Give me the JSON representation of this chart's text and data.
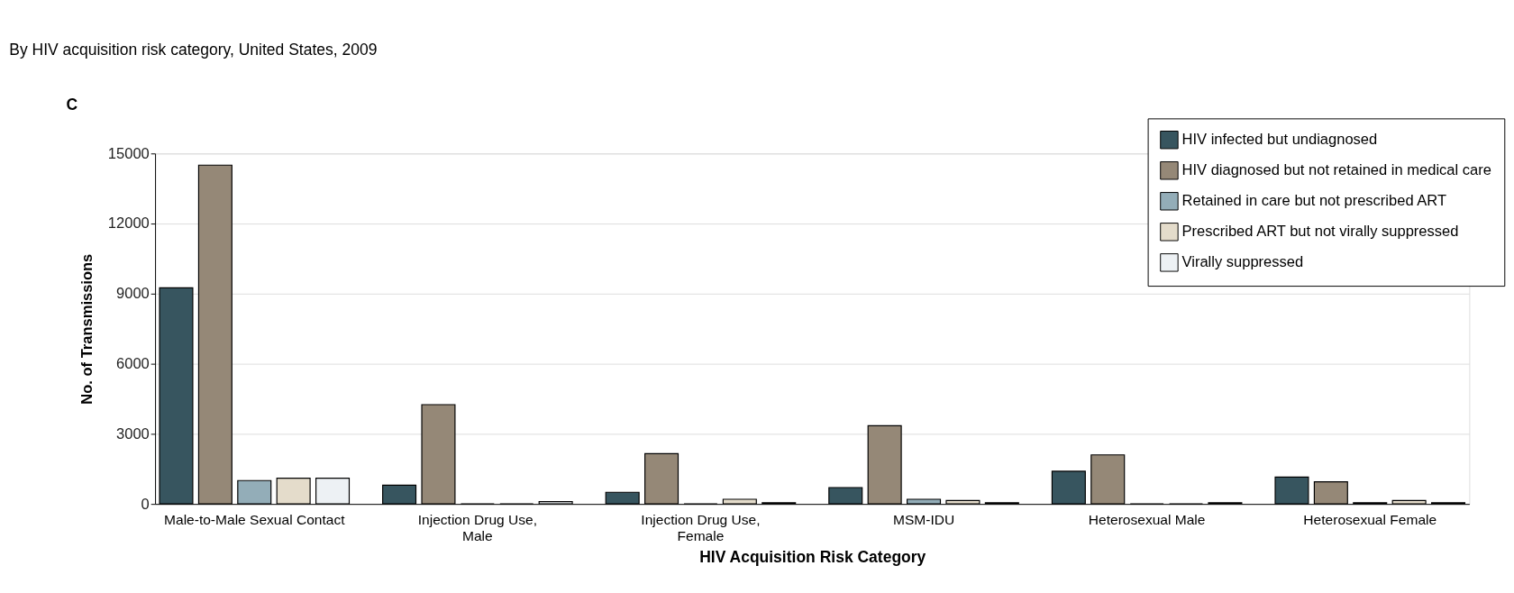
{
  "chart_data": {
    "type": "bar",
    "title": "By HIV acquisition risk category, United States, 2009",
    "annotations": [
      "C"
    ],
    "xlabel": "HIV Acquisition Risk Category",
    "ylabel": "No. of Transmissions",
    "categories": [
      "Male-to-Male Sexual Contact",
      "Injection Drug Use, Male",
      "Injection Drug Use, Female",
      "MSM-IDU",
      "Heterosexual Male",
      "Heterosexual Female"
    ],
    "series": [
      {
        "name": "HIV infected but undiagnosed",
        "color": "#37555f",
        "values": [
          9250,
          800,
          500,
          700,
          1400,
          1150
        ]
      },
      {
        "name": "HIV diagnosed but not retained in medical care",
        "color": "#958877",
        "values": [
          14500,
          4250,
          2150,
          3350,
          2100,
          950
        ]
      },
      {
        "name": "Retained in care but not prescribed ART",
        "color": "#93adb8",
        "values": [
          1000,
          0,
          0,
          200,
          0,
          50
        ]
      },
      {
        "name": "Prescribed ART but not virally suppressed",
        "color": "#e4dccb",
        "values": [
          1100,
          0,
          200,
          150,
          0,
          150
        ]
      },
      {
        "name": "Virally suppressed",
        "color": "#edf1f4",
        "values": [
          1100,
          100,
          50,
          50,
          50,
          50
        ]
      }
    ],
    "ylim": [
      0,
      15000
    ],
    "yticks": [
      0,
      3000,
      6000,
      9000,
      12000,
      15000
    ],
    "grid": "y",
    "legend": "top right"
  }
}
